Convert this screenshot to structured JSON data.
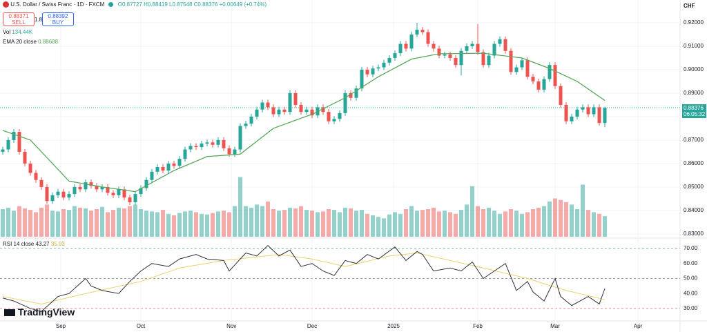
{
  "header": {
    "symbol": "U.S. Dollar / Swiss Franc · 1D · FXCM",
    "o": "O0.87727",
    "h": "H0.88419",
    "l": "L0.87548",
    "c": "C0.88376",
    "change": "+0.00649 (+0.74%)",
    "sell_price": "0.88371",
    "sell": "SELL",
    "spread": "1.8",
    "buy_price": "0.88392",
    "buy": "BUY",
    "vol_label": "Vol",
    "vol_value": "134.44K",
    "ema_label": "EMA 20 close",
    "ema_value": "0.88688",
    "rsi_label": "RSI 14 close",
    "rsi_value": "43.27",
    "rsi_ma_value": "35.93",
    "currency": "CHF",
    "last_price": "0.88376",
    "countdown": "06:05:32",
    "brand": "TradingView"
  },
  "chart_data": {
    "type": "candlestick",
    "open": [
      0.865,
      0.866,
      0.87,
      0.8735,
      0.865,
      0.86,
      0.856,
      0.853,
      0.85,
      0.844,
      0.8465,
      0.848,
      0.8455,
      0.847,
      0.85,
      0.849,
      0.852,
      0.8505,
      0.849,
      0.85,
      0.8475,
      0.8465,
      0.849,
      0.8455,
      0.8435,
      0.847,
      0.8495,
      0.853,
      0.8565,
      0.8585,
      0.857,
      0.86,
      0.859,
      0.862,
      0.866,
      0.8675,
      0.867,
      0.8685,
      0.869,
      0.868,
      0.87,
      0.8665,
      0.864,
      0.866,
      0.876,
      0.877,
      0.88,
      0.883,
      0.886,
      0.884,
      0.881,
      0.883,
      0.882,
      0.89,
      0.885,
      0.882,
      0.883,
      0.8805,
      0.884,
      0.882,
      0.878,
      0.879,
      0.8815,
      0.89,
      0.888,
      0.892,
      0.9,
      0.898,
      0.9005,
      0.901,
      0.903,
      0.905,
      0.907,
      0.911,
      0.909,
      0.915,
      0.917,
      0.916,
      0.911,
      0.909,
      0.906,
      0.9065,
      0.905,
      0.902,
      0.908,
      0.91,
      0.911,
      0.9075,
      0.902,
      0.906,
      0.911,
      0.913,
      0.908,
      0.899,
      0.901,
      0.904,
      0.897,
      0.895,
      0.8915,
      0.896,
      0.902,
      0.893,
      0.885,
      0.878,
      0.88,
      0.883,
      0.884,
      0.881,
      0.884,
      0.87727
    ],
    "high": [
      0.8672,
      0.8712,
      0.8747,
      0.8747,
      0.8662,
      0.8612,
      0.8572,
      0.8542,
      0.8512,
      0.8477,
      0.8492,
      0.8492,
      0.8482,
      0.8512,
      0.8512,
      0.8532,
      0.8532,
      0.8517,
      0.8512,
      0.8512,
      0.8487,
      0.8502,
      0.8502,
      0.8467,
      0.8482,
      0.8507,
      0.8542,
      0.8577,
      0.8597,
      0.8597,
      0.8612,
      0.8612,
      0.8632,
      0.8672,
      0.8687,
      0.8687,
      0.8697,
      0.8702,
      0.8702,
      0.8712,
      0.8712,
      0.8677,
      0.8672,
      0.8772,
      0.8782,
      0.8812,
      0.8842,
      0.8872,
      0.8872,
      0.8852,
      0.8842,
      0.8842,
      0.8912,
      0.8912,
      0.8862,
      0.8842,
      0.8842,
      0.8852,
      0.8852,
      0.8832,
      0.8802,
      0.8827,
      0.8912,
      0.8912,
      0.8932,
      0.9012,
      0.9012,
      0.9017,
      0.9022,
      0.9042,
      0.9062,
      0.9082,
      0.9122,
      0.9122,
      0.9162,
      0.92,
      0.9182,
      0.9172,
      0.9122,
      0.9102,
      0.9077,
      0.9077,
      0.9062,
      0.9092,
      0.9112,
      0.9122,
      0.9195,
      0.9087,
      0.9072,
      0.9122,
      0.9142,
      0.9142,
      0.9092,
      0.9022,
      0.9052,
      0.9052,
      0.8982,
      0.8962,
      0.8972,
      0.9032,
      0.9032,
      0.8942,
      0.8862,
      0.8812,
      0.8842,
      0.8852,
      0.8852,
      0.8852,
      0.8852,
      0.88419
    ],
    "low": [
      0.8638,
      0.8648,
      0.8688,
      0.8638,
      0.8588,
      0.8548,
      0.8518,
      0.8488,
      0.8428,
      0.8428,
      0.8453,
      0.8443,
      0.8443,
      0.8458,
      0.8478,
      0.8478,
      0.8493,
      0.8478,
      0.8478,
      0.8463,
      0.8453,
      0.8453,
      0.8443,
      0.8423,
      0.8423,
      0.8458,
      0.8483,
      0.8518,
      0.8553,
      0.8558,
      0.8558,
      0.8578,
      0.8578,
      0.8608,
      0.8648,
      0.8658,
      0.8658,
      0.8673,
      0.8668,
      0.8668,
      0.8653,
      0.8628,
      0.8628,
      0.8648,
      0.8748,
      0.8758,
      0.8788,
      0.8818,
      0.8828,
      0.8798,
      0.8798,
      0.8808,
      0.8808,
      0.8838,
      0.8808,
      0.8808,
      0.8793,
      0.8793,
      0.8808,
      0.8768,
      0.8768,
      0.8778,
      0.8803,
      0.8868,
      0.8868,
      0.8908,
      0.8968,
      0.8968,
      0.8993,
      0.8998,
      0.9018,
      0.9038,
      0.9058,
      0.9078,
      0.9078,
      0.9138,
      0.9148,
      0.9098,
      0.9078,
      0.9048,
      0.9048,
      0.9038,
      0.9008,
      0.8975,
      0.9068,
      0.9088,
      0.9063,
      0.9008,
      0.9008,
      0.9048,
      0.9098,
      0.9068,
      0.8978,
      0.8978,
      0.8998,
      0.8958,
      0.8938,
      0.8903,
      0.8903,
      0.8948,
      0.8918,
      0.8838,
      0.8768,
      0.8768,
      0.8788,
      0.8818,
      0.8798,
      0.8798,
      0.8761,
      0.87548
    ],
    "close": [
      0.866,
      0.87,
      0.8735,
      0.865,
      0.86,
      0.856,
      0.853,
      0.85,
      0.844,
      0.8465,
      0.848,
      0.8455,
      0.847,
      0.85,
      0.849,
      0.852,
      0.8505,
      0.849,
      0.85,
      0.8475,
      0.8465,
      0.849,
      0.8455,
      0.8435,
      0.847,
      0.8495,
      0.853,
      0.8565,
      0.8585,
      0.857,
      0.86,
      0.859,
      0.862,
      0.866,
      0.8675,
      0.867,
      0.8685,
      0.869,
      0.868,
      0.87,
      0.8665,
      0.864,
      0.866,
      0.876,
      0.877,
      0.88,
      0.883,
      0.886,
      0.884,
      0.881,
      0.883,
      0.882,
      0.89,
      0.885,
      0.882,
      0.883,
      0.8805,
      0.884,
      0.882,
      0.878,
      0.879,
      0.8815,
      0.89,
      0.888,
      0.892,
      0.9,
      0.898,
      0.9005,
      0.901,
      0.903,
      0.905,
      0.907,
      0.911,
      0.909,
      0.915,
      0.917,
      0.916,
      0.911,
      0.909,
      0.906,
      0.9065,
      0.905,
      0.902,
      0.908,
      0.91,
      0.911,
      0.9075,
      0.902,
      0.906,
      0.911,
      0.913,
      0.908,
      0.899,
      0.901,
      0.904,
      0.897,
      0.895,
      0.8915,
      0.896,
      0.902,
      0.893,
      0.885,
      0.878,
      0.88,
      0.883,
      0.884,
      0.881,
      0.884,
      0.87727,
      0.88376
    ],
    "volume": [
      180,
      190,
      170,
      200,
      185,
      175,
      160,
      190,
      210,
      170,
      165,
      180,
      175,
      200,
      190,
      185,
      170,
      180,
      195,
      160,
      175,
      190,
      185,
      200,
      210,
      180,
      170,
      165,
      160,
      175,
      150,
      140,
      155,
      165,
      170,
      160,
      150,
      145,
      155,
      165,
      170,
      160,
      200,
      390,
      200,
      190,
      210,
      200,
      230,
      180,
      170,
      175,
      190,
      185,
      200,
      175,
      170,
      160,
      165,
      180,
      175,
      160,
      190,
      185,
      170,
      175,
      150,
      140,
      130,
      120,
      145,
      160,
      150,
      180,
      200,
      170,
      175,
      180,
      190,
      165,
      170,
      160,
      150,
      175,
      210,
      330,
      200,
      180,
      190,
      170,
      150,
      165,
      180,
      170,
      150,
      160,
      180,
      190,
      200,
      230,
      250,
      240,
      225,
      210,
      180,
      340,
      175,
      160,
      150,
      134.44
    ],
    "ema": {
      "index": [
        0,
        5,
        12,
        18,
        24,
        31,
        37,
        43,
        49,
        56,
        62,
        68,
        74,
        79,
        87,
        94,
        99,
        104,
        109
      ],
      "values": [
        0.8741,
        0.87,
        0.8525,
        0.85,
        0.848,
        0.857,
        0.863,
        0.864,
        0.875,
        0.881,
        0.888,
        0.897,
        0.9045,
        0.9068,
        0.907,
        0.905,
        0.9005,
        0.895,
        0.88688
      ]
    },
    "rsi": {
      "index": [
        0,
        2,
        5,
        7,
        10,
        12,
        15,
        16,
        18,
        21,
        23,
        25,
        27,
        30,
        32,
        35,
        37,
        40,
        41,
        44,
        46,
        48,
        50,
        52,
        54,
        56,
        58,
        60,
        62,
        64,
        66,
        68,
        71,
        73,
        75,
        76,
        78,
        81,
        83,
        85,
        87,
        89,
        91,
        93,
        95,
        96,
        98,
        100,
        101,
        103,
        105,
        106,
        108,
        109
      ],
      "values": [
        37,
        35,
        30,
        28,
        38,
        40,
        50,
        45,
        42,
        40,
        48,
        55,
        60,
        58,
        63,
        66,
        63,
        62,
        55,
        67,
        65,
        72,
        65,
        69,
        58,
        60,
        55,
        52,
        62,
        60,
        66,
        63,
        71,
        62,
        68,
        66,
        55,
        57,
        55,
        61,
        50,
        55,
        60,
        42,
        48,
        41,
        35,
        50,
        38,
        32,
        36,
        38,
        33,
        43.27
      ]
    },
    "rsi_ma": {
      "index": [
        0,
        7,
        15,
        25,
        32,
        40,
        50,
        56,
        62,
        70,
        75,
        81,
        87,
        95,
        102,
        109
      ],
      "values": [
        38,
        33,
        40,
        48,
        57,
        62,
        66,
        63,
        58,
        65,
        67,
        62,
        57,
        50,
        42,
        35.93
      ]
    },
    "rsi_levels": [
      70,
      50,
      30
    ],
    "ylim": [
      0.8282,
      0.9297
    ],
    "yticks": [
      {
        "value": 0.92,
        "label": "0.92000"
      },
      {
        "value": 0.91,
        "label": "0.91000"
      },
      {
        "value": 0.9,
        "label": "0.90000"
      },
      {
        "value": 0.89,
        "label": "0.89000"
      },
      {
        "value": 0.88,
        "label": "0.88000"
      },
      {
        "value": 0.87,
        "label": "0.87000"
      },
      {
        "value": 0.86,
        "label": "0.86000"
      },
      {
        "value": 0.85,
        "label": "0.85000"
      },
      {
        "value": 0.84,
        "label": "0.84000"
      },
      {
        "value": 0.83,
        "label": "0.83000"
      }
    ],
    "vol_ylim": [
      0,
      1000
    ],
    "rsi_ylim": [
      21.7,
      76.9
    ],
    "rsi_ticks": [
      {
        "value": 70,
        "label": "70.00"
      },
      {
        "value": 60,
        "label": "60.00"
      },
      {
        "value": 50,
        "label": "50.00"
      },
      {
        "value": 40,
        "label": "40.00"
      },
      {
        "value": 30,
        "label": "30.00"
      }
    ],
    "xlabels": [
      {
        "index": 10.5,
        "label": "Sep"
      },
      {
        "index": 25,
        "label": "Oct"
      },
      {
        "index": 41.4,
        "label": "Nov"
      },
      {
        "index": 56,
        "label": "Dec"
      },
      {
        "index": 70.75,
        "label": "2025"
      },
      {
        "index": 86,
        "label": "Feb"
      },
      {
        "index": 100,
        "label": "Mar"
      },
      {
        "index": 115,
        "label": "Apr"
      }
    ],
    "up_color": "#26a69a",
    "down_color": "#ef5350",
    "ema_color": "#5aa85c",
    "rsi_color": "#2a2e39",
    "rsi_ma_color": "#e9d26a",
    "grid": true
  }
}
